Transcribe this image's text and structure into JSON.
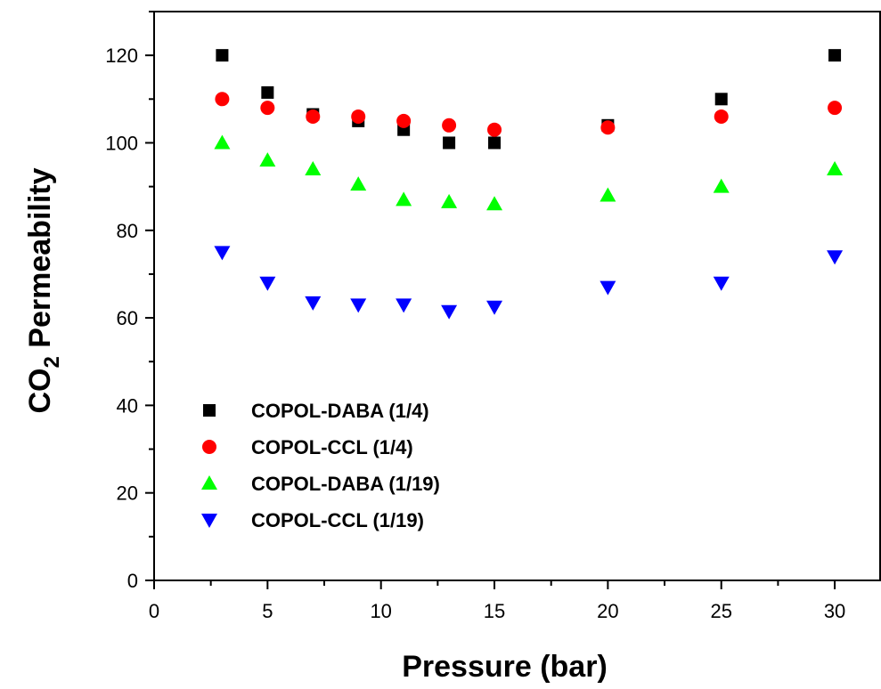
{
  "chart_data": {
    "type": "scatter",
    "xlabel": "Pressure (bar)",
    "ylabel": {
      "main": "CO",
      "sub": "2",
      "rest": " Permeability"
    },
    "xlim": [
      0,
      32
    ],
    "ylim": [
      0,
      130
    ],
    "xticks": [
      0,
      5,
      10,
      15,
      20,
      25,
      30
    ],
    "yticks": [
      0,
      20,
      40,
      60,
      80,
      100,
      120
    ],
    "x_minor_step": 2.5,
    "y_minor_step": 10,
    "grid": false,
    "legend_position": "lower-left",
    "series": [
      {
        "name": "COPOL-DABA (1/4)",
        "marker": "square",
        "color": "#000000",
        "points": [
          [
            3,
            120
          ],
          [
            5,
            111.5
          ],
          [
            7,
            106.5
          ],
          [
            9,
            105
          ],
          [
            11,
            103
          ],
          [
            13,
            100
          ],
          [
            15,
            100
          ],
          [
            20,
            104
          ],
          [
            25,
            110
          ],
          [
            30,
            120
          ]
        ]
      },
      {
        "name": "COPOL-CCL (1/4)",
        "marker": "circle",
        "color": "#ff0000",
        "points": [
          [
            3,
            110
          ],
          [
            5,
            108
          ],
          [
            7,
            106
          ],
          [
            9,
            106
          ],
          [
            11,
            105
          ],
          [
            13,
            104
          ],
          [
            15,
            103
          ],
          [
            20,
            103.5
          ],
          [
            25,
            106
          ],
          [
            30,
            108
          ]
        ]
      },
      {
        "name": "COPOL-DABA (1/19)",
        "marker": "triangle-up",
        "color": "#00ff00",
        "points": [
          [
            3,
            100
          ],
          [
            5,
            96
          ],
          [
            7,
            94
          ],
          [
            9,
            90.5
          ],
          [
            11,
            87
          ],
          [
            13,
            86.5
          ],
          [
            15,
            86
          ],
          [
            20,
            88
          ],
          [
            25,
            90
          ],
          [
            30,
            94
          ]
        ]
      },
      {
        "name": "COPOL-CCL (1/19)",
        "marker": "triangle-down",
        "color": "#0000ff",
        "points": [
          [
            3,
            75
          ],
          [
            5,
            68
          ],
          [
            7,
            63.5
          ],
          [
            9,
            63
          ],
          [
            11,
            63
          ],
          [
            13,
            61.5
          ],
          [
            15,
            62.5
          ],
          [
            20,
            67
          ],
          [
            25,
            68
          ],
          [
            30,
            74
          ]
        ]
      }
    ]
  }
}
